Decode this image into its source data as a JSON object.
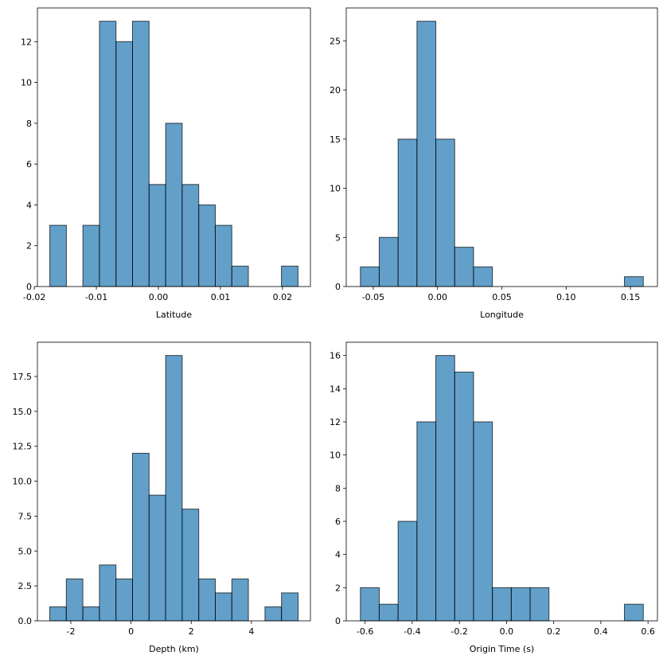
{
  "chart_data": [
    {
      "type": "histogram",
      "xlabel": "Latitude",
      "color": "#1f77b4",
      "edgecolor": "#000000",
      "bins": [
        -0.0175,
        -0.01483,
        -0.01217,
        -0.0095,
        -0.00683,
        -0.00417,
        -0.0015,
        0.00117,
        0.00383,
        0.0065,
        0.00917,
        0.01183,
        0.0145,
        0.01717,
        0.01983,
        0.0225
      ],
      "counts": [
        3,
        0,
        3,
        13,
        12,
        13,
        5,
        8,
        5,
        4,
        3,
        1,
        0,
        0,
        1
      ],
      "xlim": [
        -0.0195,
        0.0245
      ],
      "xticks": [
        -0.02,
        -0.01,
        {
          "value": 0,
          "label": "0.00"
        },
        0.01,
        0.02
      ],
      "ylim": [
        0,
        13.65
      ],
      "yticks": [
        0,
        2,
        4,
        6,
        8,
        10,
        12
      ]
    },
    {
      "type": "histogram",
      "xlabel": "Longitude",
      "color": "#1f77b4",
      "edgecolor": "#000000",
      "bins": [
        -0.06,
        -0.04533,
        -0.03067,
        -0.016,
        -0.00133,
        0.01333,
        0.028,
        0.04267,
        0.05733,
        0.072,
        0.08667,
        0.10133,
        0.116,
        0.13067,
        0.14533,
        0.16
      ],
      "counts": [
        2,
        5,
        15,
        27,
        15,
        4,
        2,
        0,
        0,
        0,
        0,
        0,
        0,
        0,
        1
      ],
      "xlim": [
        -0.071,
        0.171
      ],
      "xticks": [
        -0.05,
        {
          "value": 0,
          "label": "0.00"
        },
        0.05,
        {
          "value": 0.1,
          "label": "0.10"
        },
        0.15
      ],
      "ylim": [
        0,
        28.35
      ],
      "yticks": [
        0,
        5,
        10,
        15,
        20,
        25
      ]
    },
    {
      "type": "histogram",
      "xlabel": "Depth (km)",
      "color": "#1f77b4",
      "edgecolor": "#000000",
      "bins": [
        -2.7,
        -2.15,
        -1.6,
        -1.05,
        -0.5,
        0.05,
        0.6,
        1.15,
        1.7,
        2.25,
        2.8,
        3.35,
        3.9,
        4.45,
        5.0,
        5.55
      ],
      "counts": [
        1,
        3,
        1,
        4,
        3,
        12,
        9,
        19,
        8,
        3,
        2,
        3,
        0,
        1,
        2
      ],
      "xlim": [
        -3.11,
        5.96
      ],
      "xticks": [
        -2,
        0,
        2,
        4
      ],
      "ylim": [
        0,
        19.95
      ],
      "yticks": [
        {
          "value": 0,
          "label": "0.0"
        },
        2.5,
        {
          "value": 5,
          "label": "5.0"
        },
        7.5,
        {
          "value": 10,
          "label": "10.0"
        },
        12.5,
        {
          "value": 15,
          "label": "15.0"
        },
        17.5
      ]
    },
    {
      "type": "histogram",
      "xlabel": "Origin Time (s)",
      "color": "#1f77b4",
      "edgecolor": "#000000",
      "bins": [
        -0.62,
        -0.54,
        -0.46,
        -0.38,
        -0.3,
        -0.22,
        -0.14,
        -0.06,
        0.02,
        0.1,
        0.18,
        0.26,
        0.34,
        0.42,
        0.5,
        0.58
      ],
      "counts": [
        2,
        1,
        6,
        12,
        16,
        15,
        12,
        2,
        2,
        2,
        0,
        0,
        0,
        0,
        1
      ],
      "xlim": [
        -0.68,
        0.64
      ],
      "xticks": [
        -0.6,
        -0.4,
        -0.2,
        {
          "value": 0,
          "label": "0.0"
        },
        0.2,
        0.4,
        0.6
      ],
      "ylim": [
        0,
        16.8
      ],
      "yticks": [
        0,
        2,
        4,
        6,
        8,
        10,
        12,
        14,
        16
      ]
    }
  ]
}
